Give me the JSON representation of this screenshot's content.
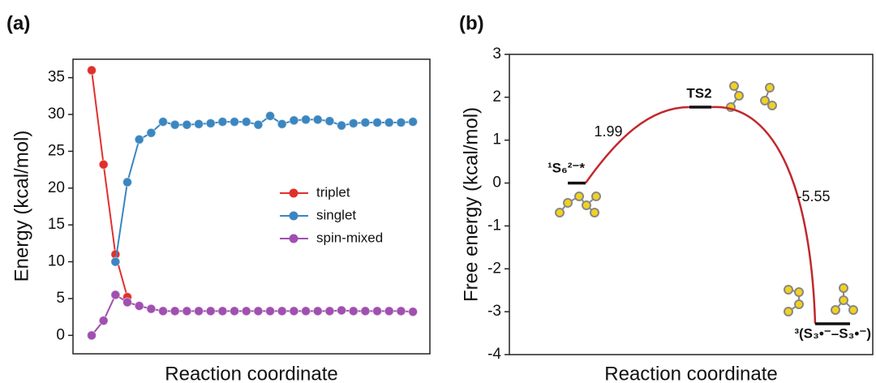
{
  "chart_data": [
    {
      "type": "line",
      "panel": "(a)",
      "ylabel": "Energy (kcal/mol)",
      "xlabel": "Reaction coordinate",
      "ylim": [
        -2.5,
        37.5
      ],
      "yticks": [
        0,
        5,
        10,
        15,
        20,
        25,
        30,
        35
      ],
      "legend": "center right",
      "series": [
        {
          "name": "triplet",
          "color": "#e0302c",
          "values": [
            36,
            23.2,
            11,
            5.2,
            null,
            null,
            null,
            null,
            null,
            null,
            null,
            null,
            null,
            null,
            null,
            null,
            null,
            null,
            null,
            null,
            null,
            null,
            null,
            null,
            null,
            null,
            null,
            null
          ]
        },
        {
          "name": "singlet",
          "color": "#3c86c0",
          "values": [
            null,
            null,
            10,
            20.8,
            26.6,
            27.5,
            29,
            28.6,
            28.6,
            28.7,
            28.8,
            29,
            29,
            29,
            28.6,
            29.8,
            28.7,
            29.2,
            29.3,
            29.3,
            29.1,
            28.5,
            28.8,
            28.9,
            28.9,
            28.9,
            28.9,
            29
          ]
        },
        {
          "name": "spin-mixed",
          "color": "#a050b0",
          "values": [
            0,
            2,
            5.5,
            4.5,
            4,
            3.6,
            3.3,
            3.3,
            3.3,
            3.3,
            3.3,
            3.3,
            3.3,
            3.3,
            3.3,
            3.3,
            3.3,
            3.3,
            3.3,
            3.3,
            3.3,
            3.4,
            3.3,
            3.3,
            3.3,
            3.3,
            3.3,
            3.2
          ]
        }
      ]
    },
    {
      "type": "profile",
      "panel": "(b)",
      "ylabel": "Free energy (kcal/mol)",
      "xlabel": "Reaction coordinate",
      "ylim": [
        -4,
        3
      ],
      "yticks": [
        -4,
        -3,
        -2,
        -1,
        0,
        1,
        2,
        3
      ],
      "color": "#c0282d",
      "states": [
        "¹S₆²⁻*",
        "TS2",
        "³(S₃•⁻–S₃•⁻)"
      ],
      "values": [
        0,
        1.77,
        -3.28
      ],
      "annotations": [
        "1.99",
        "-5.55"
      ]
    }
  ]
}
